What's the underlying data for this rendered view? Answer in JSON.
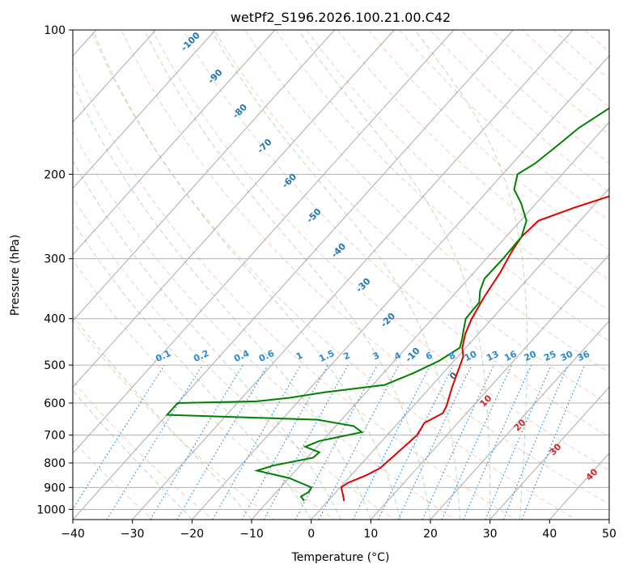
{
  "chart_data": {
    "type": "line",
    "title": "wetPf2_S196.2026.100.21.00.C42",
    "xlabel": "Temperature (°C)",
    "ylabel": "Pressure (hPa)",
    "xlim": [
      -40,
      50
    ],
    "ylim": [
      1050,
      100
    ],
    "y_scale": "log",
    "grid": true,
    "x_ticks": [
      -40,
      -30,
      -20,
      -10,
      0,
      10,
      20,
      30,
      40,
      50
    ],
    "x_tick_labels": [
      "−40",
      "−30",
      "−20",
      "−10",
      "0",
      "10",
      "20",
      "30",
      "40",
      "50"
    ],
    "y_ticks": [
      100,
      200,
      300,
      400,
      500,
      600,
      700,
      800,
      900,
      1000
    ],
    "y_tick_labels": [
      "100",
      "200",
      "300",
      "400",
      "500",
      "600",
      "700",
      "800",
      "900",
      "1000"
    ],
    "series": [
      {
        "color": "#e00000",
        "values": [
          {
            "p": 960,
            "t": 2.7
          },
          {
            "p": 930,
            "t": 1.5
          },
          {
            "p": 900,
            "t": 0.2
          },
          {
            "p": 880,
            "t": 0.6
          },
          {
            "p": 850,
            "t": 2.5
          },
          {
            "p": 820,
            "t": 3.8
          },
          {
            "p": 780,
            "t": 4.2
          },
          {
            "p": 700,
            "t": 5.0
          },
          {
            "p": 660,
            "t": 4.4
          },
          {
            "p": 630,
            "t": 6.0
          },
          {
            "p": 610,
            "t": 5.6
          },
          {
            "p": 560,
            "t": 3.8
          },
          {
            "p": 520,
            "t": 2.4
          },
          {
            "p": 480,
            "t": 0.9
          },
          {
            "p": 460,
            "t": -0.6
          },
          {
            "p": 430,
            "t": -2.2
          },
          {
            "p": 400,
            "t": -3.4
          },
          {
            "p": 360,
            "t": -4.6
          },
          {
            "p": 320,
            "t": -5.6
          },
          {
            "p": 290,
            "t": -6.8
          },
          {
            "p": 270,
            "t": -7.4
          },
          {
            "p": 250,
            "t": -7.0
          },
          {
            "p": 235,
            "t": -3.0
          },
          {
            "p": 220,
            "t": 2.0
          },
          {
            "p": 205,
            "t": 7.0
          },
          {
            "p": 195,
            "t": 10.0
          },
          {
            "p": 180,
            "t": 12.0
          },
          {
            "p": 165,
            "t": 14.0
          },
          {
            "p": 150,
            "t": 16.0
          },
          {
            "p": 140,
            "t": 17.0
          },
          {
            "p": 130,
            "t": 18.0
          },
          {
            "p": 120,
            "t": 20.0
          },
          {
            "p": 110,
            "t": 24.0
          },
          {
            "p": 100,
            "t": 26.5
          }
        ]
      },
      {
        "color": "#008000",
        "values": [
          {
            "p": 960,
            "t": -4.0
          },
          {
            "p": 940,
            "t": -5.2
          },
          {
            "p": 920,
            "t": -4.6
          },
          {
            "p": 900,
            "t": -4.8
          },
          {
            "p": 860,
            "t": -10.0
          },
          {
            "p": 830,
            "t": -16.5
          },
          {
            "p": 810,
            "t": -14.5
          },
          {
            "p": 780,
            "t": -9.0
          },
          {
            "p": 760,
            "t": -8.8
          },
          {
            "p": 740,
            "t": -12.0
          },
          {
            "p": 720,
            "t": -10.5
          },
          {
            "p": 690,
            "t": -4.7
          },
          {
            "p": 670,
            "t": -7.0
          },
          {
            "p": 650,
            "t": -14.0
          },
          {
            "p": 635,
            "t": -40.0
          },
          {
            "p": 600,
            "t": -40.0
          },
          {
            "p": 595,
            "t": -27.0
          },
          {
            "p": 585,
            "t": -22.0
          },
          {
            "p": 570,
            "t": -17.0
          },
          {
            "p": 550,
            "t": -8.0
          },
          {
            "p": 520,
            "t": -5.0
          },
          {
            "p": 490,
            "t": -2.5
          },
          {
            "p": 460,
            "t": -1.0
          },
          {
            "p": 440,
            "t": -2.0
          },
          {
            "p": 420,
            "t": -3.2
          },
          {
            "p": 400,
            "t": -4.4
          },
          {
            "p": 370,
            "t": -4.6
          },
          {
            "p": 350,
            "t": -6.2
          },
          {
            "p": 330,
            "t": -7.3
          },
          {
            "p": 300,
            "t": -7.2
          },
          {
            "p": 270,
            "t": -7.4
          },
          {
            "p": 250,
            "t": -9.0
          },
          {
            "p": 230,
            "t": -12.5
          },
          {
            "p": 215,
            "t": -15.8
          },
          {
            "p": 200,
            "t": -17.5
          },
          {
            "p": 190,
            "t": -16.2
          },
          {
            "p": 175,
            "t": -15.2
          },
          {
            "p": 160,
            "t": -14.2
          },
          {
            "p": 145,
            "t": -12.0
          },
          {
            "p": 130,
            "t": -9.5
          },
          {
            "p": 115,
            "t": -6.5
          },
          {
            "p": 100,
            "t": -1.0
          }
        ]
      }
    ],
    "background": {
      "isotherm_spacing": 10,
      "dry_adiabat_color": "#f4a582",
      "moist_adiabat_color": "#7fbf7f",
      "isotherm_color": "#888888",
      "mixing_ratio_color": "#2a8ad4"
    },
    "annotations": {
      "mixing_ratio_labels": [
        "0.1",
        "0.2",
        "0.4",
        "0.6",
        "1",
        "1.5",
        "2",
        "3",
        "4",
        "6",
        "8",
        "10",
        "13",
        "16",
        "20",
        "25",
        "30",
        "36"
      ],
      "blue_isotherm_labels": [
        "-100",
        "-90",
        "-80",
        "-70",
        "-60",
        "-50",
        "-40",
        "-30",
        "-20",
        "-10"
      ],
      "red_isotherm_labels": [
        "10",
        "20",
        "30",
        "40"
      ],
      "zero_label": "0"
    }
  }
}
